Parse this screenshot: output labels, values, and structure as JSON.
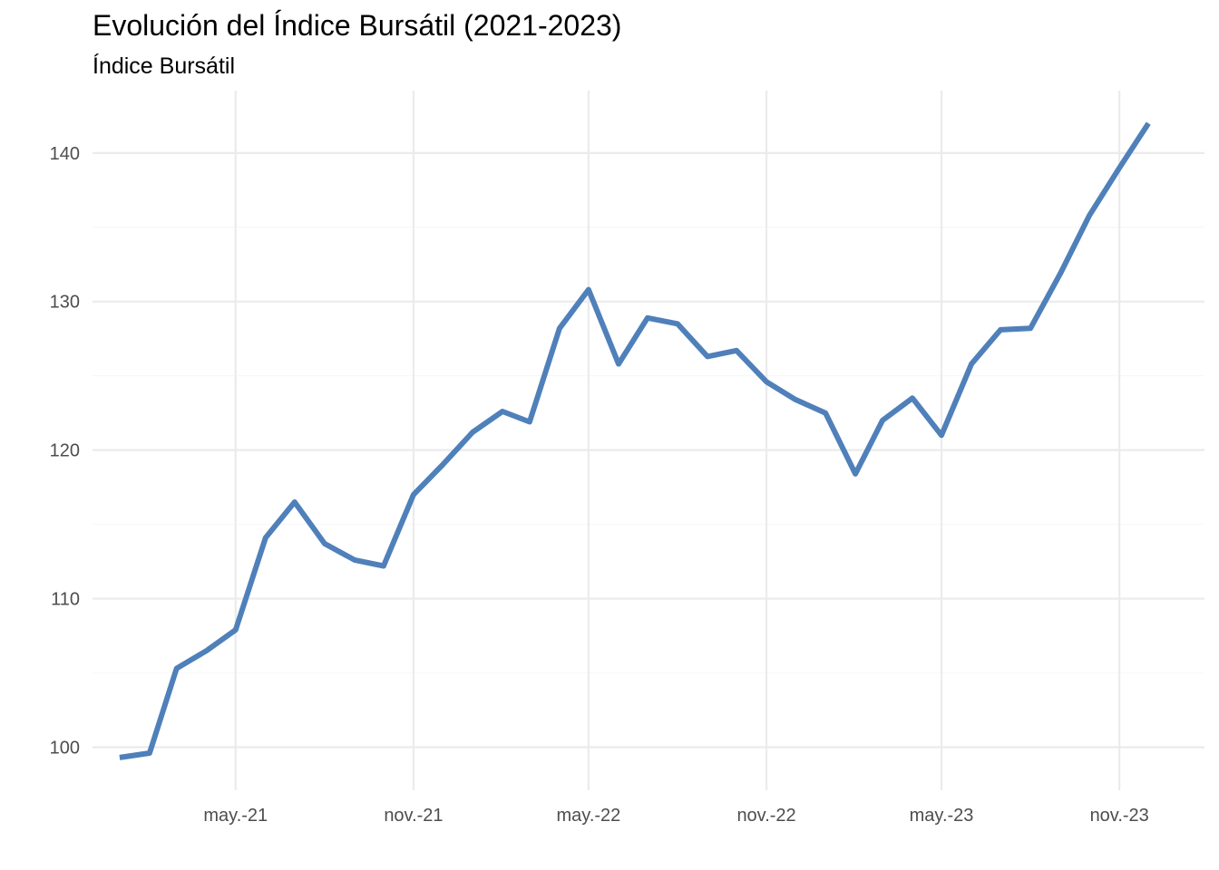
{
  "chart_data": {
    "type": "line",
    "title": "Evolución del Índice Bursátil (2021-2023)",
    "subtitle": "Índice Bursátil",
    "xlabel": "",
    "ylabel": "",
    "x": [
      "2021-01",
      "2021-02",
      "2021-03",
      "2021-04",
      "2021-05",
      "2021-06",
      "2021-07",
      "2021-08",
      "2021-09",
      "2021-10",
      "2021-11",
      "2021-12",
      "2022-01",
      "2022-02",
      "2022-03",
      "2022-04",
      "2022-05",
      "2022-06",
      "2022-07",
      "2022-08",
      "2022-09",
      "2022-10",
      "2022-11",
      "2022-12",
      "2023-01",
      "2023-02",
      "2023-03",
      "2023-04",
      "2023-05",
      "2023-06",
      "2023-07",
      "2023-08",
      "2023-09",
      "2023-10",
      "2023-11",
      "2023-12"
    ],
    "series": [
      {
        "values": [
          99.3,
          99.6,
          105.3,
          106.5,
          107.9,
          114.1,
          116.5,
          113.7,
          112.6,
          112.2,
          117.0,
          119.0,
          121.2,
          122.6,
          121.9,
          128.2,
          130.8,
          125.8,
          128.9,
          128.5,
          126.3,
          126.7,
          124.6,
          123.4,
          122.5,
          118.4,
          122.0,
          123.5,
          121.0,
          125.8,
          128.1,
          128.2,
          131.9,
          135.8,
          139.0,
          142.0
        ],
        "color": "#4f80ba"
      }
    ],
    "x_ticks": [
      "may.-21",
      "nov.-21",
      "may.-22",
      "nov.-22",
      "may.-23",
      "nov.-23"
    ],
    "x_tick_dates": [
      "2021-05",
      "2021-11",
      "2022-05",
      "2022-11",
      "2023-05",
      "2023-11"
    ],
    "y_ticks": [
      100,
      110,
      120,
      130,
      140
    ],
    "ylim": [
      97.1,
      144.2
    ],
    "xlim": [
      "2020-12-04",
      "2024-01-28"
    ],
    "grid": true,
    "legend": "none",
    "colors": {
      "line": "#4f80ba",
      "grid": "#ebebeb",
      "tick_text": "#4d4d4d"
    }
  }
}
